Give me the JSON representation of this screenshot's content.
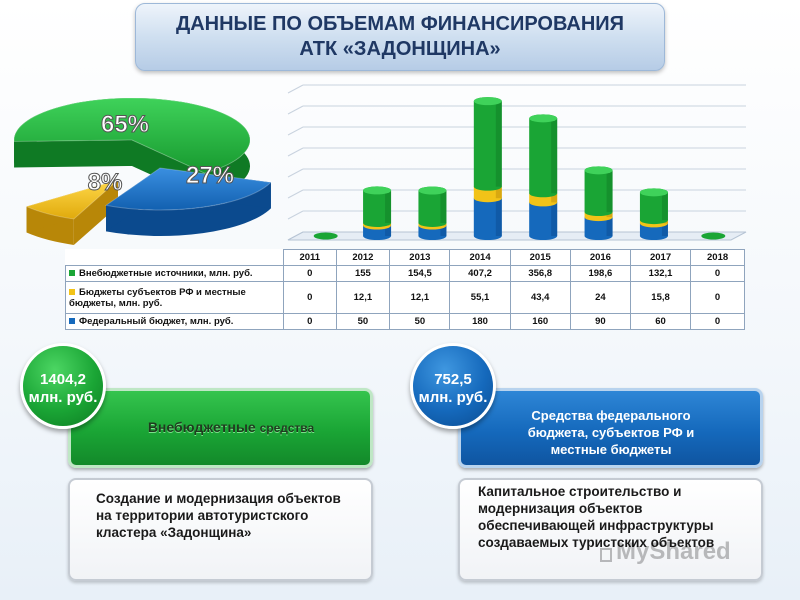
{
  "title": {
    "line1": "ДАННЫЕ ПО ОБЪЕМАМ ФИНАНСИРОВАНИЯ",
    "line2": "АТК «ЗАДОНЩИНА»"
  },
  "colors": {
    "green": "#1aa535",
    "yellow": "#f2c318",
    "blue": "#1569bc"
  },
  "chart_data": [
    {
      "type": "pie",
      "slices": [
        {
          "label": "65%",
          "value": 65,
          "color": "#1aa535"
        },
        {
          "label": "8%",
          "value": 8,
          "color": "#f2c318"
        },
        {
          "label": "27%",
          "value": 27,
          "color": "#1569bc"
        }
      ]
    },
    {
      "type": "bar",
      "stacked": true,
      "categories": [
        "2011",
        "2012",
        "2013",
        "2014",
        "2015",
        "2016",
        "2017",
        "2018"
      ],
      "series": [
        {
          "name": "Внебюджетные источники, млн. руб.",
          "color": "#1aa535",
          "values": [
            "0",
            "155",
            "154,5",
            "407,2",
            "356,8",
            "198,6",
            "132,1",
            "0"
          ],
          "numeric": [
            0,
            155,
            154.5,
            407.2,
            356.8,
            198.6,
            132.1,
            0
          ]
        },
        {
          "name": "Бюджеты субъектов РФ и местные бюджеты, млн. руб.",
          "color": "#f2c318",
          "values": [
            "0",
            "12,1",
            "12,1",
            "55,1",
            "43,4",
            "24",
            "15,8",
            "0"
          ],
          "numeric": [
            0,
            12.1,
            12.1,
            55.1,
            43.4,
            24,
            15.8,
            0
          ]
        },
        {
          "name": "Федеральный бюджет, млн. руб.",
          "color": "#1569bc",
          "values": [
            "0",
            "50",
            "50",
            "180",
            "160",
            "90",
            "60",
            "0"
          ],
          "numeric": [
            0,
            50,
            50,
            180,
            160,
            90,
            60,
            0
          ]
        }
      ],
      "grid": true,
      "legend": "table-below"
    }
  ],
  "left_block": {
    "amount_line1": "1404,2",
    "amount_line2": "млн. руб.",
    "label_main": "Внебюджетные ",
    "label_small": "средства",
    "description": "Создание и модернизация объектов на территории автотуристского кластера «Задонщина»"
  },
  "right_block": {
    "amount_line1": "752,5",
    "amount_line2": "млн. руб.",
    "label": "Средства федерального бюджета, субъектов РФ и местные бюджеты",
    "description": "Капитальное строительство и модернизация объектов обеспечивающей инфраструктуры создаваемых туристских объектов"
  },
  "watermark": "MyShared"
}
